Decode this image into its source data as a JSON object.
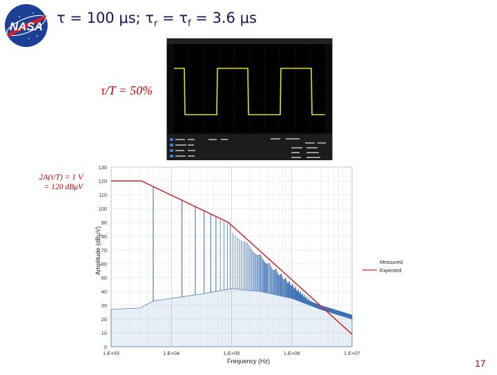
{
  "slide": {
    "title_prefix": "τ = 100 μs; τ",
    "title_r": "r",
    "title_mid": " = τ",
    "title_f": "f",
    "title_suffix": "  = 3.6 μs",
    "duty_label": "τ/T = 50%",
    "amp_note_line1": "2A(τ/T) = 1 V",
    "amp_note_line2": "= 120 dBμV",
    "page_number": "17",
    "logo_text": "NASA"
  },
  "scope": {
    "waveform": "square",
    "trace_color": "#e8e020",
    "grid_color": "#3a3a3a",
    "frame_color": "#8a8a8a"
  },
  "colors": {
    "title": "#131360",
    "accent_red": "#c00000",
    "measured": "#4a7ebb",
    "expected": "#d02020"
  },
  "chart_data": {
    "type": "line",
    "xlabel": "Frequency (Hz)",
    "ylabel": "Amplitude (dBμV)",
    "x_scale": "log",
    "xlim": [
      1000,
      10000000
    ],
    "ylim": [
      0,
      130
    ],
    "x_ticks": [
      "1.E+03",
      "1.E+04",
      "1.E+05",
      "1.E+06",
      "1.E+07"
    ],
    "y_ticks": [
      0,
      10,
      20,
      30,
      40,
      50,
      60,
      70,
      80,
      90,
      100,
      110,
      120,
      130
    ],
    "grid": true,
    "legend_position": "right",
    "series": [
      {
        "name": "Measured",
        "style": "spectrum",
        "fundamental_hz": 5000,
        "peaks_db": [
          [
            5000,
            116
          ],
          [
            15000,
            107
          ],
          [
            25000,
            102
          ],
          [
            35000,
            99
          ],
          [
            45000,
            96
          ],
          [
            55000,
            94
          ],
          [
            65000,
            92
          ],
          [
            75000,
            91
          ],
          [
            85000,
            90
          ],
          [
            95000,
            89
          ]
        ],
        "floor_db": [
          [
            1000,
            27
          ],
          [
            3000,
            28
          ],
          [
            5000,
            33
          ],
          [
            10000,
            35
          ],
          [
            30000,
            38
          ],
          [
            100000,
            42
          ],
          [
            300000,
            40
          ],
          [
            1000000,
            35
          ],
          [
            3000000,
            27
          ],
          [
            10000000,
            20
          ]
        ]
      },
      {
        "name": "Expected",
        "style": "line",
        "x": [
          1000,
          3180,
          88400,
          10000000
        ],
        "y": [
          120,
          120,
          90,
          9
        ]
      }
    ]
  }
}
